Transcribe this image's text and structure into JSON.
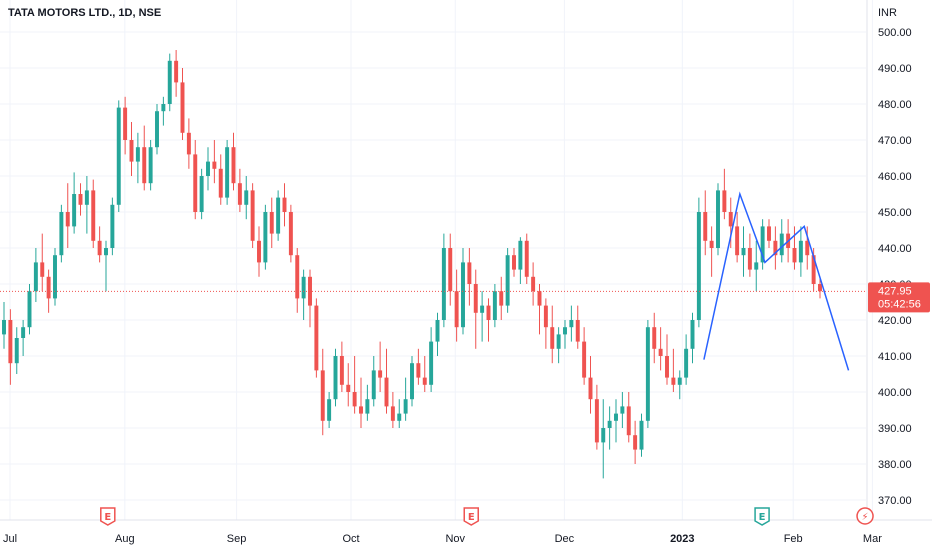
{
  "chart_data": {
    "type": "candlestick",
    "title": "TATA MOTORS LTD., 1D, NSE",
    "y_unit": "INR",
    "ylim": [
      365,
      505
    ],
    "y_ticks": [
      "370.00",
      "380.00",
      "390.00",
      "400.00",
      "410.00",
      "420.00",
      "430.00",
      "440.00",
      "450.00",
      "460.00",
      "470.00",
      "480.00",
      "490.00",
      "500.00"
    ],
    "x_ticks": [
      {
        "label": "Jul",
        "pos": 0.0,
        "bold": false
      },
      {
        "label": "Aug",
        "pos": 0.1305,
        "bold": false
      },
      {
        "label": "Sep",
        "pos": 0.2575,
        "bold": false
      },
      {
        "label": "Oct",
        "pos": 0.3875,
        "bold": false
      },
      {
        "label": "Nov",
        "pos": 0.506,
        "bold": false
      },
      {
        "label": "Dec",
        "pos": 0.63,
        "bold": false
      },
      {
        "label": "2023",
        "pos": 0.764,
        "bold": true
      },
      {
        "label": "Feb",
        "pos": 0.89,
        "bold": false
      },
      {
        "label": "Mar",
        "pos": 0.98,
        "bold": false
      }
    ],
    "last_price": "427.95",
    "countdown": "05:42:56",
    "up_color": "#26a69a",
    "down_color": "#ef5350",
    "trendline_color": "#2962ff",
    "event_icons": [
      {
        "type": "earnings-icon",
        "label": "E",
        "pos": 0.1225,
        "color": "#ef5350"
      },
      {
        "type": "earnings-icon",
        "label": "E",
        "pos": 0.5355,
        "color": "#ef5350"
      },
      {
        "type": "earnings-icon",
        "label": "E",
        "pos": 0.866,
        "color": "#26a69a"
      },
      {
        "type": "dividend-icon",
        "label": "⚡",
        "pos": 0.983,
        "color": "#ef5350"
      }
    ],
    "trendline": [
      [
        0.842,
        409
      ],
      [
        0.885,
        455
      ],
      [
        0.915,
        436
      ],
      [
        0.962,
        446
      ],
      [
        1.015,
        406
      ]
    ],
    "ohlc": [
      [
        416,
        425,
        412,
        420
      ],
      [
        420,
        423,
        402,
        408
      ],
      [
        408,
        418,
        405,
        415
      ],
      [
        415,
        420,
        410,
        418
      ],
      [
        418,
        430,
        416,
        428
      ],
      [
        428,
        440,
        425,
        436
      ],
      [
        436,
        444,
        428,
        432
      ],
      [
        432,
        434,
        422,
        426
      ],
      [
        426,
        440,
        424,
        438
      ],
      [
        438,
        452,
        436,
        450
      ],
      [
        450,
        458,
        440,
        446
      ],
      [
        446,
        461,
        444,
        455
      ],
      [
        455,
        458,
        449,
        452
      ],
      [
        452,
        460,
        444,
        456
      ],
      [
        456,
        459,
        440,
        442
      ],
      [
        442,
        446,
        436,
        438
      ],
      [
        438,
        442,
        428,
        440
      ],
      [
        440,
        454,
        438,
        452
      ],
      [
        452,
        481,
        450,
        479
      ],
      [
        479,
        482,
        466,
        470
      ],
      [
        470,
        475,
        460,
        464
      ],
      [
        464,
        472,
        458,
        468
      ],
      [
        468,
        474,
        456,
        458
      ],
      [
        458,
        470,
        456,
        468
      ],
      [
        468,
        480,
        466,
        478
      ],
      [
        478,
        482,
        474,
        480
      ],
      [
        480,
        494,
        478,
        492
      ],
      [
        492,
        495,
        482,
        486
      ],
      [
        486,
        490,
        470,
        472
      ],
      [
        472,
        476,
        462,
        466
      ],
      [
        466,
        470,
        448,
        450
      ],
      [
        450,
        462,
        448,
        460
      ],
      [
        460,
        468,
        456,
        464
      ],
      [
        464,
        470,
        458,
        462
      ],
      [
        462,
        466,
        452,
        454
      ],
      [
        454,
        470,
        452,
        468
      ],
      [
        468,
        472,
        456,
        458
      ],
      [
        458,
        462,
        450,
        452
      ],
      [
        452,
        460,
        448,
        456
      ],
      [
        456,
        458,
        440,
        442
      ],
      [
        442,
        446,
        432,
        436
      ],
      [
        436,
        452,
        434,
        450
      ],
      [
        450,
        454,
        440,
        444
      ],
      [
        444,
        456,
        442,
        454
      ],
      [
        454,
        458,
        446,
        450
      ],
      [
        450,
        452,
        436,
        438
      ],
      [
        438,
        440,
        422,
        426
      ],
      [
        426,
        434,
        420,
        432
      ],
      [
        432,
        434,
        418,
        424
      ],
      [
        424,
        426,
        404,
        406
      ],
      [
        406,
        412,
        388,
        392
      ],
      [
        392,
        400,
        390,
        398
      ],
      [
        398,
        412,
        396,
        410
      ],
      [
        410,
        414,
        400,
        402
      ],
      [
        402,
        408,
        396,
        400
      ],
      [
        400,
        410,
        394,
        396
      ],
      [
        396,
        404,
        390,
        394
      ],
      [
        394,
        402,
        392,
        398
      ],
      [
        398,
        410,
        396,
        406
      ],
      [
        406,
        414,
        400,
        404
      ],
      [
        404,
        412,
        394,
        396
      ],
      [
        396,
        400,
        390,
        392
      ],
      [
        392,
        398,
        390,
        394
      ],
      [
        394,
        404,
        392,
        398
      ],
      [
        398,
        410,
        396,
        408
      ],
      [
        408,
        412,
        402,
        404
      ],
      [
        404,
        410,
        400,
        402
      ],
      [
        402,
        418,
        400,
        414
      ],
      [
        414,
        422,
        410,
        420
      ],
      [
        420,
        444,
        418,
        440
      ],
      [
        440,
        444,
        424,
        428
      ],
      [
        428,
        434,
        414,
        418
      ],
      [
        418,
        440,
        416,
        436
      ],
      [
        436,
        440,
        424,
        430
      ],
      [
        430,
        434,
        412,
        422
      ],
      [
        422,
        428,
        414,
        424
      ],
      [
        424,
        426,
        414,
        420
      ],
      [
        420,
        430,
        418,
        428
      ],
      [
        428,
        432,
        420,
        424
      ],
      [
        424,
        440,
        422,
        438
      ],
      [
        438,
        440,
        432,
        434
      ],
      [
        434,
        443,
        430,
        442
      ],
      [
        442,
        444,
        430,
        432
      ],
      [
        432,
        436,
        424,
        428
      ],
      [
        428,
        430,
        416,
        424
      ],
      [
        424,
        426,
        412,
        418
      ],
      [
        418,
        424,
        408,
        412
      ],
      [
        412,
        418,
        408,
        416
      ],
      [
        416,
        420,
        412,
        418
      ],
      [
        418,
        424,
        414,
        420
      ],
      [
        420,
        424,
        412,
        414
      ],
      [
        414,
        418,
        402,
        404
      ],
      [
        404,
        410,
        394,
        398
      ],
      [
        398,
        402,
        384,
        386
      ],
      [
        386,
        398,
        376,
        390
      ],
      [
        390,
        396,
        384,
        392
      ],
      [
        392,
        398,
        386,
        394
      ],
      [
        394,
        400,
        390,
        396
      ],
      [
        396,
        400,
        386,
        388
      ],
      [
        388,
        392,
        380,
        384
      ],
      [
        384,
        394,
        382,
        392
      ],
      [
        392,
        420,
        390,
        418
      ],
      [
        418,
        422,
        408,
        412
      ],
      [
        412,
        418,
        406,
        410
      ],
      [
        410,
        416,
        402,
        404
      ],
      [
        404,
        412,
        400,
        402
      ],
      [
        402,
        406,
        398,
        404
      ],
      [
        404,
        416,
        402,
        412
      ],
      [
        412,
        422,
        408,
        420
      ],
      [
        420,
        454,
        418,
        450
      ],
      [
        450,
        456,
        438,
        442
      ],
      [
        442,
        446,
        432,
        440
      ],
      [
        440,
        458,
        438,
        456
      ],
      [
        456,
        462,
        448,
        450
      ],
      [
        450,
        454,
        440,
        446
      ],
      [
        446,
        450,
        436,
        438
      ],
      [
        438,
        446,
        432,
        440
      ],
      [
        440,
        444,
        432,
        434
      ],
      [
        434,
        442,
        428,
        436
      ],
      [
        436,
        448,
        434,
        446
      ],
      [
        446,
        448,
        440,
        442
      ],
      [
        442,
        446,
        434,
        438
      ],
      [
        438,
        448,
        436,
        444
      ],
      [
        444,
        448,
        436,
        440
      ],
      [
        440,
        446,
        434,
        436
      ],
      [
        436,
        446,
        432,
        442
      ],
      [
        442,
        446,
        434,
        438
      ],
      [
        438,
        440,
        428,
        430
      ],
      [
        430,
        432,
        426,
        428
      ]
    ]
  }
}
